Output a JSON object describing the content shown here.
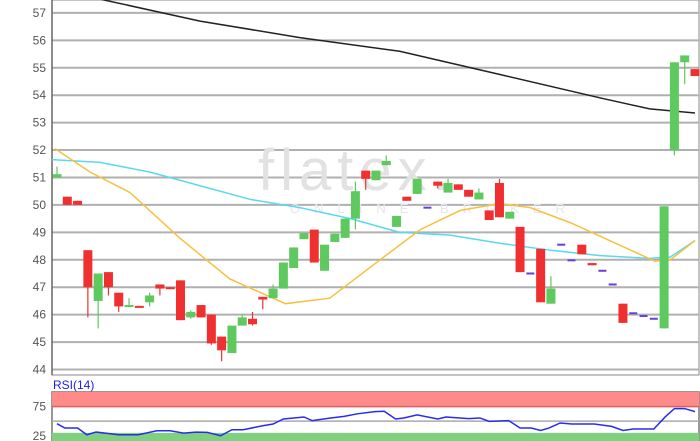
{
  "chart_data": [
    {
      "type": "candlestick",
      "title": "",
      "ylim": [
        43.8,
        57.47
      ],
      "yticks": [
        44,
        45,
        46,
        47,
        48,
        49,
        50,
        51,
        52,
        53,
        54,
        55,
        56,
        57
      ],
      "grid": true,
      "colors": {
        "up": "#5ec95e",
        "down": "#f03030",
        "unchanged": "#6a3fd8",
        "grid": "#b0b0b0"
      },
      "candles_ohlc": [
        [
          51.0,
          51.4,
          51.0,
          51.12
        ],
        [
          50.3,
          50.3,
          50.0,
          50.0
        ],
        [
          50.15,
          50.15,
          50.0,
          50.0
        ],
        [
          48.35,
          48.35,
          45.9,
          47.0
        ],
        [
          46.5,
          47.5,
          45.5,
          47.5
        ],
        [
          47.55,
          47.55,
          46.7,
          47.0
        ],
        [
          46.8,
          46.8,
          46.1,
          46.3
        ],
        [
          46.3,
          46.6,
          46.3,
          46.35
        ],
        [
          46.32,
          46.32,
          46.3,
          46.3
        ],
        [
          46.45,
          46.8,
          46.3,
          46.7
        ],
        [
          47.1,
          47.1,
          46.7,
          46.95
        ],
        [
          47.0,
          47.0,
          46.95,
          46.95
        ],
        [
          47.25,
          47.25,
          45.8,
          45.8
        ],
        [
          45.9,
          46.15,
          45.85,
          46.1
        ],
        [
          46.35,
          46.35,
          45.9,
          45.9
        ],
        [
          46.0,
          46.0,
          44.9,
          44.95
        ],
        [
          45.2,
          45.2,
          44.3,
          44.7
        ],
        [
          44.6,
          45.6,
          44.6,
          45.6
        ],
        [
          45.6,
          46.0,
          45.6,
          45.9
        ],
        [
          45.85,
          46.1,
          45.6,
          45.65
        ],
        [
          46.65,
          46.65,
          46.2,
          46.55
        ],
        [
          46.6,
          47.1,
          46.6,
          46.95
        ],
        [
          46.95,
          47.9,
          46.95,
          47.9
        ],
        [
          47.7,
          48.45,
          47.7,
          48.45
        ],
        [
          48.75,
          48.97,
          48.75,
          48.97
        ],
        [
          49.1,
          49.1,
          47.9,
          47.9
        ],
        [
          47.6,
          48.55,
          47.6,
          48.55
        ],
        [
          48.65,
          48.95,
          48.65,
          48.95
        ],
        [
          48.8,
          49.5,
          48.8,
          49.5
        ],
        [
          49.5,
          50.85,
          49.1,
          50.5
        ],
        [
          51.25,
          51.25,
          50.55,
          50.95
        ],
        [
          50.9,
          51.25,
          50.9,
          51.25
        ],
        [
          51.45,
          51.8,
          51.45,
          51.6
        ],
        [
          49.2,
          49.6,
          49.2,
          49.6
        ],
        [
          50.3,
          50.3,
          50.15,
          50.15
        ],
        [
          50.4,
          50.95,
          50.4,
          50.95
        ],
        [
          49.9,
          49.9,
          49.9,
          49.9
        ],
        [
          50.85,
          50.85,
          50.6,
          50.7
        ],
        [
          50.45,
          50.95,
          50.45,
          50.8
        ],
        [
          50.75,
          50.75,
          50.55,
          50.55
        ],
        [
          50.55,
          50.55,
          50.3,
          50.3
        ],
        [
          50.2,
          50.6,
          50.2,
          50.45
        ],
        [
          49.8,
          49.8,
          49.45,
          49.45
        ],
        [
          50.8,
          50.95,
          49.55,
          49.55
        ],
        [
          49.5,
          49.75,
          49.5,
          49.75
        ],
        [
          49.2,
          49.2,
          47.55,
          47.55
        ],
        [
          47.5,
          47.5,
          47.5,
          47.5
        ],
        [
          48.4,
          48.4,
          46.45,
          46.45
        ],
        [
          46.4,
          47.4,
          46.4,
          46.95
        ],
        [
          48.55,
          48.55,
          48.55,
          48.55
        ],
        [
          47.98,
          47.98,
          47.98,
          47.98
        ],
        [
          48.55,
          48.55,
          48.2,
          48.2
        ],
        [
          47.88,
          47.88,
          47.8,
          47.8
        ],
        [
          47.6,
          47.6,
          47.6,
          47.6
        ],
        [
          47.1,
          47.1,
          47.1,
          47.1
        ],
        [
          46.4,
          46.4,
          45.7,
          45.7
        ],
        [
          46.05,
          46.05,
          46.05,
          46.05
        ],
        [
          45.95,
          45.95,
          45.95,
          45.95
        ],
        [
          45.85,
          45.85,
          45.85,
          45.85
        ],
        [
          45.5,
          49.95,
          45.5,
          49.95
        ],
        [
          52.0,
          55.2,
          51.8,
          55.2
        ],
        [
          55.2,
          55.45,
          54.4,
          55.45
        ],
        [
          54.95,
          54.95,
          54.7,
          54.7
        ]
      ],
      "moving_averages": [
        {
          "color": "#222222",
          "points_index_value": [
            [
              4.2,
              57.5
            ],
            [
              13.9,
              56.7
            ],
            [
              23.6,
              56.1
            ],
            [
              33.3,
              55.6
            ],
            [
              43.1,
              54.75
            ],
            [
              52.8,
              53.9
            ],
            [
              57.6,
              53.5
            ],
            [
              62,
              53.35
            ]
          ]
        },
        {
          "color": "#5ad8f0",
          "points_index_value": [
            [
              -0.5,
              51.65
            ],
            [
              4.2,
              51.55
            ],
            [
              9,
              51.2
            ],
            [
              13.9,
              50.7
            ],
            [
              18.8,
              50.2
            ],
            [
              23.6,
              49.9
            ],
            [
              28.5,
              49.5
            ],
            [
              33.3,
              49.0
            ],
            [
              38.2,
              48.9
            ],
            [
              43.1,
              48.6
            ],
            [
              47.9,
              48.35
            ],
            [
              52.8,
              48.15
            ],
            [
              57.6,
              48.05
            ],
            [
              59.6,
              48.1
            ],
            [
              62,
              48.7
            ]
          ]
        },
        {
          "color": "#f8c040",
          "points_index_value": [
            [
              -0.2,
              52.05
            ],
            [
              3.2,
              51.2
            ],
            [
              7.1,
              50.45
            ],
            [
              11.9,
              48.8
            ],
            [
              16.8,
              47.3
            ],
            [
              22.2,
              46.4
            ],
            [
              26.5,
              46.6
            ],
            [
              31.4,
              48.0
            ],
            [
              35.3,
              49.1
            ],
            [
              39.2,
              49.8
            ],
            [
              43.1,
              50.05
            ],
            [
              46,
              49.9
            ],
            [
              49.9,
              49.35
            ],
            [
              53.7,
              48.7
            ],
            [
              58.1,
              47.95
            ],
            [
              59.6,
              48.0
            ],
            [
              62,
              48.7
            ]
          ]
        }
      ]
    },
    {
      "type": "line",
      "title": "RSI(14)",
      "ylim": [
        16,
        100
      ],
      "yticks": [
        25,
        75
      ],
      "zones": [
        {
          "from": 75,
          "to": 100,
          "color": "#ff8a8a"
        },
        {
          "from": 16,
          "to": 30,
          "color": "#7fd07f"
        }
      ],
      "midline": 50,
      "color": "#2a2af0",
      "points_index_value": [
        [
          0,
          45.7
        ],
        [
          0.75,
          38.2
        ],
        [
          2,
          38.2
        ],
        [
          2.9,
          26.7
        ],
        [
          3.8,
          31.3
        ],
        [
          6,
          26.7
        ],
        [
          7.9,
          26.7
        ],
        [
          9.7,
          33.6
        ],
        [
          11,
          33.6
        ],
        [
          12.3,
          29.6
        ],
        [
          13.5,
          31.3
        ],
        [
          14.6,
          30.7
        ],
        [
          15.9,
          25
        ],
        [
          17,
          35.3
        ],
        [
          18.1,
          35.3
        ],
        [
          20,
          42.2
        ],
        [
          21,
          45.1
        ],
        [
          22,
          53.7
        ],
        [
          24,
          57.2
        ],
        [
          24.8,
          50.9
        ],
        [
          26.6,
          55.5
        ],
        [
          27.9,
          58.3
        ],
        [
          29.2,
          62.6
        ],
        [
          30.9,
          66.4
        ],
        [
          31.8,
          66.9
        ],
        [
          32.9,
          53.7
        ],
        [
          33.7,
          55.5
        ],
        [
          35,
          60.7
        ],
        [
          37,
          53.7
        ],
        [
          37.8,
          57.2
        ],
        [
          40,
          54.3
        ],
        [
          41.1,
          55.5
        ],
        [
          42,
          49.7
        ],
        [
          43.9,
          50.9
        ],
        [
          45,
          38.2
        ],
        [
          46.1,
          38.2
        ],
        [
          47,
          34.1
        ],
        [
          47.8,
          38.2
        ],
        [
          48.9,
          46.9
        ],
        [
          50,
          45.1
        ],
        [
          52.2,
          45.1
        ],
        [
          53.9,
          41.1
        ],
        [
          55,
          34.1
        ],
        [
          56,
          36.6
        ],
        [
          58,
          36.6
        ],
        [
          59.1,
          57.2
        ],
        [
          60,
          71.6
        ],
        [
          61,
          71.6
        ],
        [
          62,
          66.4
        ]
      ]
    }
  ],
  "watermark": {
    "logo": "flatex.",
    "tagline": "ONLINE BROKER"
  }
}
